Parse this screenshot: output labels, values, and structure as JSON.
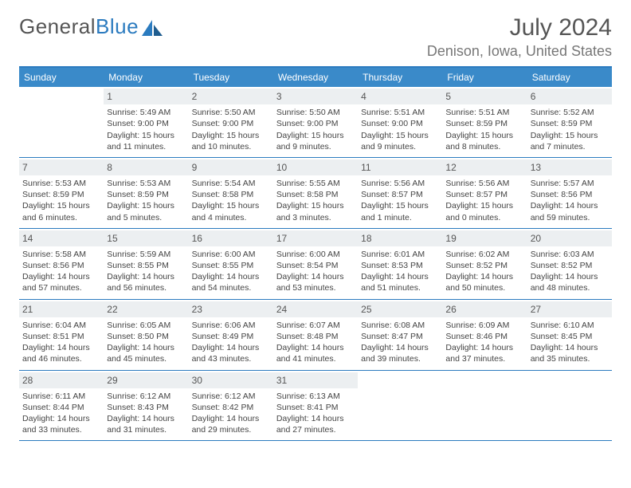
{
  "brand": {
    "part1": "General",
    "part2": "Blue"
  },
  "title": "July 2024",
  "location": "Denison, Iowa, United States",
  "colors": {
    "header_bg": "#3a8ac9",
    "accent": "#2b7bbf",
    "daynum_bg": "#eceff1",
    "text": "#444444"
  },
  "dayNames": [
    "Sunday",
    "Monday",
    "Tuesday",
    "Wednesday",
    "Thursday",
    "Friday",
    "Saturday"
  ],
  "weeks": [
    [
      {
        "n": "",
        "sr": "",
        "ss": "",
        "dl": ""
      },
      {
        "n": "1",
        "sr": "Sunrise: 5:49 AM",
        "ss": "Sunset: 9:00 PM",
        "dl": "Daylight: 15 hours and 11 minutes."
      },
      {
        "n": "2",
        "sr": "Sunrise: 5:50 AM",
        "ss": "Sunset: 9:00 PM",
        "dl": "Daylight: 15 hours and 10 minutes."
      },
      {
        "n": "3",
        "sr": "Sunrise: 5:50 AM",
        "ss": "Sunset: 9:00 PM",
        "dl": "Daylight: 15 hours and 9 minutes."
      },
      {
        "n": "4",
        "sr": "Sunrise: 5:51 AM",
        "ss": "Sunset: 9:00 PM",
        "dl": "Daylight: 15 hours and 9 minutes."
      },
      {
        "n": "5",
        "sr": "Sunrise: 5:51 AM",
        "ss": "Sunset: 8:59 PM",
        "dl": "Daylight: 15 hours and 8 minutes."
      },
      {
        "n": "6",
        "sr": "Sunrise: 5:52 AM",
        "ss": "Sunset: 8:59 PM",
        "dl": "Daylight: 15 hours and 7 minutes."
      }
    ],
    [
      {
        "n": "7",
        "sr": "Sunrise: 5:53 AM",
        "ss": "Sunset: 8:59 PM",
        "dl": "Daylight: 15 hours and 6 minutes."
      },
      {
        "n": "8",
        "sr": "Sunrise: 5:53 AM",
        "ss": "Sunset: 8:59 PM",
        "dl": "Daylight: 15 hours and 5 minutes."
      },
      {
        "n": "9",
        "sr": "Sunrise: 5:54 AM",
        "ss": "Sunset: 8:58 PM",
        "dl": "Daylight: 15 hours and 4 minutes."
      },
      {
        "n": "10",
        "sr": "Sunrise: 5:55 AM",
        "ss": "Sunset: 8:58 PM",
        "dl": "Daylight: 15 hours and 3 minutes."
      },
      {
        "n": "11",
        "sr": "Sunrise: 5:56 AM",
        "ss": "Sunset: 8:57 PM",
        "dl": "Daylight: 15 hours and 1 minute."
      },
      {
        "n": "12",
        "sr": "Sunrise: 5:56 AM",
        "ss": "Sunset: 8:57 PM",
        "dl": "Daylight: 15 hours and 0 minutes."
      },
      {
        "n": "13",
        "sr": "Sunrise: 5:57 AM",
        "ss": "Sunset: 8:56 PM",
        "dl": "Daylight: 14 hours and 59 minutes."
      }
    ],
    [
      {
        "n": "14",
        "sr": "Sunrise: 5:58 AM",
        "ss": "Sunset: 8:56 PM",
        "dl": "Daylight: 14 hours and 57 minutes."
      },
      {
        "n": "15",
        "sr": "Sunrise: 5:59 AM",
        "ss": "Sunset: 8:55 PM",
        "dl": "Daylight: 14 hours and 56 minutes."
      },
      {
        "n": "16",
        "sr": "Sunrise: 6:00 AM",
        "ss": "Sunset: 8:55 PM",
        "dl": "Daylight: 14 hours and 54 minutes."
      },
      {
        "n": "17",
        "sr": "Sunrise: 6:00 AM",
        "ss": "Sunset: 8:54 PM",
        "dl": "Daylight: 14 hours and 53 minutes."
      },
      {
        "n": "18",
        "sr": "Sunrise: 6:01 AM",
        "ss": "Sunset: 8:53 PM",
        "dl": "Daylight: 14 hours and 51 minutes."
      },
      {
        "n": "19",
        "sr": "Sunrise: 6:02 AM",
        "ss": "Sunset: 8:52 PM",
        "dl": "Daylight: 14 hours and 50 minutes."
      },
      {
        "n": "20",
        "sr": "Sunrise: 6:03 AM",
        "ss": "Sunset: 8:52 PM",
        "dl": "Daylight: 14 hours and 48 minutes."
      }
    ],
    [
      {
        "n": "21",
        "sr": "Sunrise: 6:04 AM",
        "ss": "Sunset: 8:51 PM",
        "dl": "Daylight: 14 hours and 46 minutes."
      },
      {
        "n": "22",
        "sr": "Sunrise: 6:05 AM",
        "ss": "Sunset: 8:50 PM",
        "dl": "Daylight: 14 hours and 45 minutes."
      },
      {
        "n": "23",
        "sr": "Sunrise: 6:06 AM",
        "ss": "Sunset: 8:49 PM",
        "dl": "Daylight: 14 hours and 43 minutes."
      },
      {
        "n": "24",
        "sr": "Sunrise: 6:07 AM",
        "ss": "Sunset: 8:48 PM",
        "dl": "Daylight: 14 hours and 41 minutes."
      },
      {
        "n": "25",
        "sr": "Sunrise: 6:08 AM",
        "ss": "Sunset: 8:47 PM",
        "dl": "Daylight: 14 hours and 39 minutes."
      },
      {
        "n": "26",
        "sr": "Sunrise: 6:09 AM",
        "ss": "Sunset: 8:46 PM",
        "dl": "Daylight: 14 hours and 37 minutes."
      },
      {
        "n": "27",
        "sr": "Sunrise: 6:10 AM",
        "ss": "Sunset: 8:45 PM",
        "dl": "Daylight: 14 hours and 35 minutes."
      }
    ],
    [
      {
        "n": "28",
        "sr": "Sunrise: 6:11 AM",
        "ss": "Sunset: 8:44 PM",
        "dl": "Daylight: 14 hours and 33 minutes."
      },
      {
        "n": "29",
        "sr": "Sunrise: 6:12 AM",
        "ss": "Sunset: 8:43 PM",
        "dl": "Daylight: 14 hours and 31 minutes."
      },
      {
        "n": "30",
        "sr": "Sunrise: 6:12 AM",
        "ss": "Sunset: 8:42 PM",
        "dl": "Daylight: 14 hours and 29 minutes."
      },
      {
        "n": "31",
        "sr": "Sunrise: 6:13 AM",
        "ss": "Sunset: 8:41 PM",
        "dl": "Daylight: 14 hours and 27 minutes."
      },
      {
        "n": "",
        "sr": "",
        "ss": "",
        "dl": ""
      },
      {
        "n": "",
        "sr": "",
        "ss": "",
        "dl": ""
      },
      {
        "n": "",
        "sr": "",
        "ss": "",
        "dl": ""
      }
    ]
  ]
}
